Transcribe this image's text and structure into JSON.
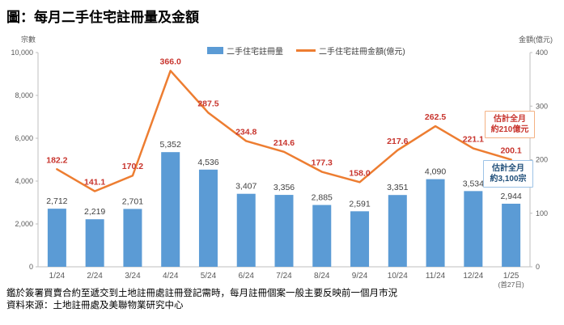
{
  "title": "圖：每月二手住宅註冊量及金額",
  "chart_data": {
    "type": "combo (bar + line)",
    "categories": [
      "1/24",
      "2/24",
      "3/24",
      "4/24",
      "5/24",
      "6/24",
      "7/24",
      "8/24",
      "9/24",
      "10/24",
      "11/24",
      "12/24",
      "1/25"
    ],
    "last_category_note": "(首27日)",
    "series": [
      {
        "name": "二手住宅註冊量",
        "type": "bar",
        "axis": "left",
        "color": "#5B9BD5",
        "label_color": "#404040",
        "values": [
          2712,
          2219,
          2701,
          5352,
          4536,
          3407,
          3356,
          2885,
          2591,
          3351,
          4090,
          3534,
          2944
        ]
      },
      {
        "name": "二手住宅註冊金額(億元)",
        "type": "line",
        "axis": "right",
        "color": "#ED7D31",
        "label_color": "#C8352E",
        "values": [
          182.2,
          141.1,
          170.2,
          366.0,
          287.5,
          234.8,
          214.6,
          177.3,
          158.0,
          217.6,
          262.5,
          221.1,
          200.1
        ]
      }
    ],
    "left_axis": {
      "label": "宗數",
      "min": 0,
      "max": 10000,
      "ticks": [
        0,
        2000,
        4000,
        6000,
        8000,
        10000
      ]
    },
    "right_axis": {
      "label": "金額(億元)",
      "min": 0,
      "max": 400,
      "ticks": [
        0,
        100,
        200,
        300,
        400
      ]
    },
    "grid": false,
    "legend_position": "top"
  },
  "annotations": [
    {
      "lines": [
        "估計全月",
        "約210億元"
      ],
      "text_color": "#C8352E",
      "border_color": "#F4B183"
    },
    {
      "lines": [
        "估計全月",
        "約3,100宗"
      ],
      "text_color": "#1F4E79",
      "border_color": "#9DC3E6"
    }
  ],
  "footnotes": [
    "鑑於簽署買賣合約至遞交到土地註冊處註冊登記需時，每月註冊個案一般主要反映前一個月市況",
    "資料來源：土地註冊處及美聯物業研究中心"
  ]
}
